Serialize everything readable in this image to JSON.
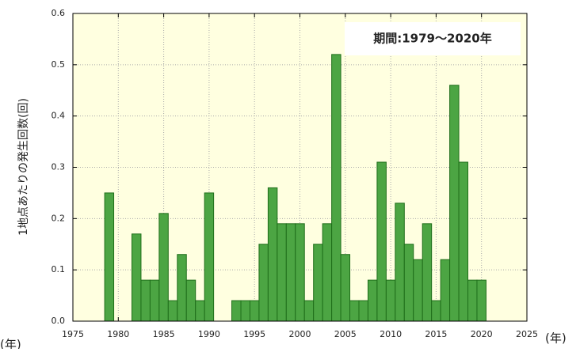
{
  "chart_data": {
    "type": "bar",
    "annotation": "期間:1979～2020年",
    "y_label": "1地点あたりの発生回数(回)",
    "x_label": "(年)",
    "x": [
      1979,
      1980,
      1981,
      1982,
      1983,
      1984,
      1985,
      1986,
      1987,
      1988,
      1989,
      1990,
      1991,
      1992,
      1993,
      1994,
      1995,
      1996,
      1997,
      1998,
      1999,
      2000,
      2001,
      2002,
      2003,
      2004,
      2005,
      2006,
      2007,
      2008,
      2009,
      2010,
      2011,
      2012,
      2013,
      2014,
      2015,
      2016,
      2017,
      2018,
      2019,
      2020
    ],
    "values": [
      0.25,
      0,
      0,
      0.17,
      0.08,
      0.08,
      0.21,
      0.04,
      0.13,
      0.08,
      0.04,
      0.25,
      0,
      0,
      0.04,
      0.04,
      0.04,
      0.15,
      0.26,
      0.19,
      0.19,
      0.19,
      0.04,
      0.15,
      0.19,
      0.52,
      0.13,
      0.04,
      0.04,
      0.08,
      0.31,
      0.08,
      0.23,
      0.15,
      0.12,
      0.19,
      0.04,
      0.12,
      0.46,
      0.31,
      0.08,
      0.08
    ],
    "color": "#4ca543",
    "xlim": [
      1975,
      2025
    ],
    "xticks": [
      1975,
      1980,
      1985,
      1990,
      1995,
      2000,
      2005,
      2010,
      2015,
      2020,
      2025
    ],
    "ylim": [
      0,
      0.6
    ],
    "yticks": [
      {
        "value": 0,
        "label": "0.0"
      },
      0.1,
      0.2,
      0.3,
      0.4,
      0.5,
      0.6
    ],
    "grid": true
  }
}
